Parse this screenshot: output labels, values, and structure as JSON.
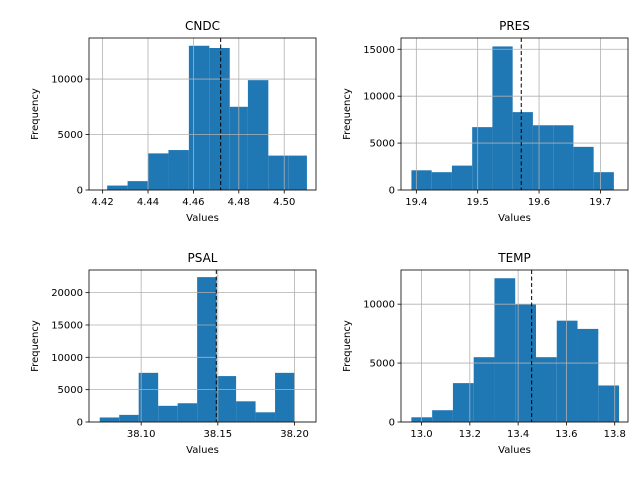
{
  "chart_data": [
    {
      "type": "bar",
      "title": "CNDC",
      "xlabel": "Values",
      "ylabel": "Frequency",
      "xlim": [
        4.414,
        4.514
      ],
      "ylim": [
        0,
        13700
      ],
      "bin_edges": [
        4.422,
        4.431,
        4.44,
        4.449,
        4.458,
        4.467,
        4.476,
        4.484,
        4.493,
        4.502,
        4.51
      ],
      "values": [
        400,
        800,
        3300,
        3600,
        13000,
        12800,
        7500,
        9900,
        3100,
        3100
      ],
      "mean_line": 4.472,
      "xticks": [
        "4.42",
        "4.44",
        "4.46",
        "4.48",
        "4.50"
      ],
      "xtick_values": [
        4.42,
        4.44,
        4.46,
        4.48,
        4.5
      ],
      "yticks": [
        "0",
        "5000",
        "10000"
      ],
      "ytick_values": [
        0,
        5000,
        10000
      ],
      "bar_color": "#1f77b4"
    },
    {
      "type": "bar",
      "title": "PRES",
      "xlabel": "Values",
      "ylabel": "Frequency",
      "xlim": [
        19.375,
        19.745
      ],
      "ylim": [
        0,
        16200
      ],
      "bin_edges": [
        19.392,
        19.425,
        19.458,
        19.491,
        19.524,
        19.557,
        19.59,
        19.623,
        19.656,
        19.689,
        19.722
      ],
      "values": [
        2100,
        1900,
        2600,
        6700,
        15300,
        8300,
        6900,
        6900,
        4600,
        1900
      ],
      "mean_line": 19.571,
      "xticks": [
        "19.4",
        "19.5",
        "19.6",
        "19.7"
      ],
      "xtick_values": [
        19.4,
        19.5,
        19.6,
        19.7
      ],
      "yticks": [
        "0",
        "5000",
        "10000",
        "15000"
      ],
      "ytick_values": [
        0,
        5000,
        10000,
        15000
      ],
      "bar_color": "#1f77b4"
    },
    {
      "type": "bar",
      "title": "PSAL",
      "xlabel": "Values",
      "ylabel": "Frequency",
      "xlim": [
        38.066,
        38.214
      ],
      "ylim": [
        0,
        23500
      ],
      "bin_edges": [
        38.073,
        38.0857,
        38.0984,
        38.1111,
        38.1238,
        38.1365,
        38.1492,
        38.1619,
        38.1746,
        38.1873,
        38.2
      ],
      "values": [
        700,
        1100,
        7600,
        2500,
        2900,
        22400,
        7100,
        3200,
        1500,
        7600
      ],
      "mean_line": 38.149,
      "xticks": [
        "38.10",
        "38.15",
        "38.20"
      ],
      "xtick_values": [
        38.1,
        38.15,
        38.2
      ],
      "yticks": [
        "0",
        "5000",
        "10000",
        "15000",
        "20000"
      ],
      "ytick_values": [
        0,
        5000,
        10000,
        15000,
        20000
      ],
      "bar_color": "#1f77b4"
    },
    {
      "type": "bar",
      "title": "TEMP",
      "xlabel": "Values",
      "ylabel": "Frequency",
      "xlim": [
        12.915,
        13.855
      ],
      "ylim": [
        0,
        12900
      ],
      "bin_edges": [
        12.958,
        13.044,
        13.13,
        13.216,
        13.302,
        13.388,
        13.474,
        13.56,
        13.646,
        13.732,
        13.818
      ],
      "values": [
        400,
        1000,
        3300,
        5500,
        12200,
        10000,
        5500,
        8600,
        7900,
        3100
      ],
      "mean_line": 13.456,
      "xticks": [
        "13.0",
        "13.2",
        "13.4",
        "13.6",
        "13.8"
      ],
      "xtick_values": [
        13.0,
        13.2,
        13.4,
        13.6,
        13.8
      ],
      "yticks": [
        "0",
        "5000",
        "10000"
      ],
      "ytick_values": [
        0,
        5000,
        10000
      ],
      "bar_color": "#1f77b4"
    }
  ]
}
